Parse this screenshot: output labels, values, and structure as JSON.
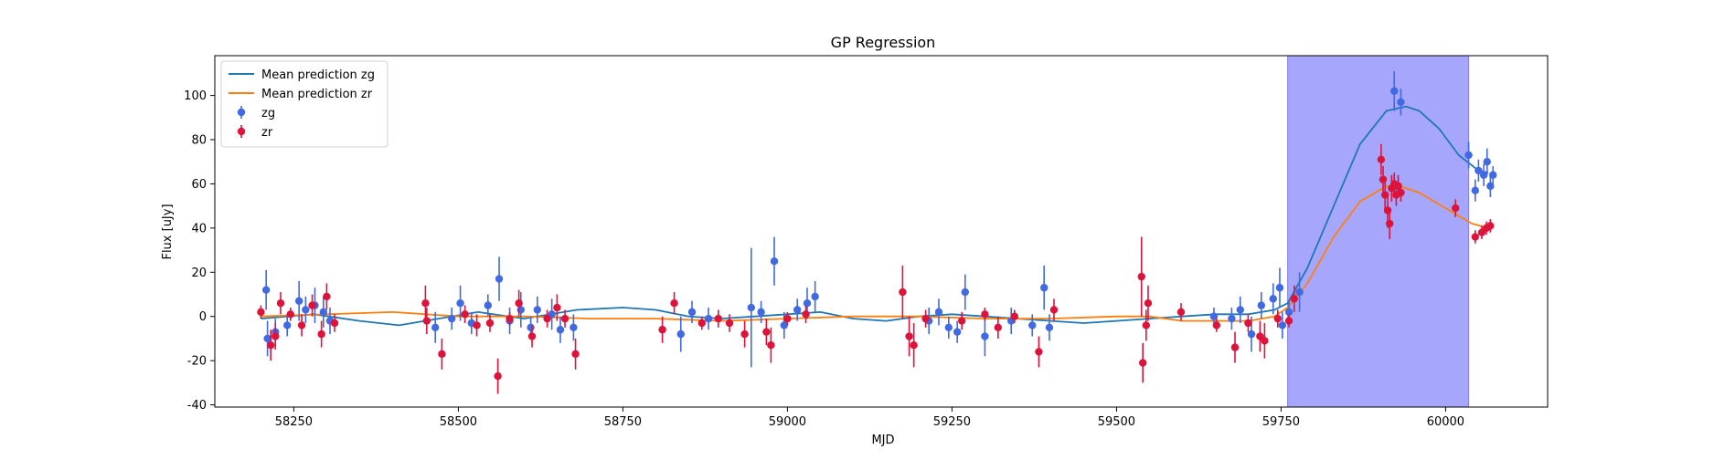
{
  "chart_data": {
    "type": "scatter",
    "title": "GP Regression",
    "xlabel": "MJD",
    "ylabel": "Flux [uJy]",
    "xlim": [
      58130,
      60155
    ],
    "ylim": [
      -41,
      118
    ],
    "xticks": [
      58250,
      58500,
      58750,
      59000,
      59250,
      59500,
      59750,
      60000
    ],
    "yticks": [
      -40,
      -20,
      0,
      20,
      40,
      60,
      80,
      100
    ],
    "shaded_region": {
      "x_start": 59760,
      "x_end": 60035,
      "color": "#a6a6fc"
    },
    "legend_position": "upper left",
    "legend": [
      {
        "label": "Mean prediction zg",
        "kind": "line",
        "color": "#1f77b4"
      },
      {
        "label": "Mean prediction zr",
        "kind": "line",
        "color": "#ff7f0e"
      },
      {
        "label": "zg",
        "kind": "errorbar",
        "color": "#4169e1"
      },
      {
        "label": "zr",
        "kind": "errorbar",
        "color": "#dc143c"
      }
    ],
    "series": [
      {
        "name": "Mean prediction zg",
        "type": "line",
        "color": "#1f77b4",
        "x": [
          58200,
          58280,
          58350,
          58410,
          58470,
          58530,
          58600,
          58680,
          58750,
          58800,
          58850,
          58900,
          58950,
          59000,
          59050,
          59100,
          59150,
          59200,
          59250,
          59300,
          59350,
          59400,
          59450,
          59500,
          59550,
          59600,
          59650,
          59700,
          59740,
          59760,
          59790,
          59830,
          59870,
          59910,
          59940,
          59960,
          59990,
          60020,
          60050,
          60065
        ],
        "y": [
          -1,
          1,
          -2,
          -4,
          -1,
          2,
          -1,
          3,
          4,
          3,
          0,
          -1,
          0,
          1,
          2,
          -1,
          -2,
          0,
          1,
          0,
          -1,
          -2,
          -3,
          -2,
          -1,
          0,
          1,
          1,
          3,
          6,
          22,
          50,
          78,
          93,
          95,
          93,
          85,
          73,
          66,
          65
        ]
      },
      {
        "name": "Mean prediction zr",
        "type": "line",
        "color": "#ff7f0e",
        "x": [
          58200,
          58300,
          58400,
          58500,
          58600,
          58700,
          58800,
          58900,
          59000,
          59100,
          59200,
          59300,
          59400,
          59500,
          59550,
          59600,
          59650,
          59700,
          59740,
          59760,
          59790,
          59830,
          59870,
          59910,
          59930,
          59960,
          60000,
          60040,
          60065
        ],
        "y": [
          0,
          1,
          2,
          0,
          0,
          -1,
          -1,
          -2,
          -1,
          0,
          0,
          -1,
          -1,
          0,
          0,
          -2,
          -2,
          -2,
          0,
          4,
          15,
          36,
          52,
          59,
          59,
          56,
          49,
          42,
          40
        ]
      },
      {
        "name": "zg",
        "type": "errorbar",
        "color": "#4169e1",
        "points": [
          [
            58208,
            12,
            9
          ],
          [
            58210,
            -10,
            8
          ],
          [
            58222,
            -7,
            6
          ],
          [
            58240,
            -4,
            5
          ],
          [
            58258,
            7,
            9
          ],
          [
            58268,
            3,
            6
          ],
          [
            58282,
            5,
            8
          ],
          [
            58295,
            2,
            7
          ],
          [
            58305,
            -2,
            6
          ],
          [
            58465,
            -5,
            7
          ],
          [
            58490,
            -1,
            5
          ],
          [
            58503,
            6,
            8
          ],
          [
            58520,
            -3,
            5
          ],
          [
            58545,
            5,
            5
          ],
          [
            58562,
            17,
            10
          ],
          [
            58578,
            -2,
            6
          ],
          [
            58595,
            3,
            8
          ],
          [
            58610,
            -5,
            5
          ],
          [
            58620,
            3,
            6
          ],
          [
            58642,
            1,
            7
          ],
          [
            58655,
            -6,
            6
          ],
          [
            58675,
            -5,
            6
          ],
          [
            58838,
            -8,
            8
          ],
          [
            58855,
            2,
            5
          ],
          [
            58880,
            -1,
            5
          ],
          [
            58945,
            4,
            27
          ],
          [
            58960,
            2,
            5
          ],
          [
            58980,
            25,
            11
          ],
          [
            58995,
            -4,
            6
          ],
          [
            59015,
            3,
            5
          ],
          [
            59030,
            6,
            7
          ],
          [
            59042,
            9,
            7
          ],
          [
            59215,
            -2,
            6
          ],
          [
            59230,
            2,
            6
          ],
          [
            59245,
            -5,
            5
          ],
          [
            59258,
            -7,
            5
          ],
          [
            59270,
            11,
            8
          ],
          [
            59300,
            -9,
            9
          ],
          [
            59340,
            -2,
            6
          ],
          [
            59372,
            -4,
            5
          ],
          [
            59390,
            13,
            10
          ],
          [
            59398,
            -5,
            6
          ],
          [
            59648,
            0,
            4
          ],
          [
            59675,
            -1,
            5
          ],
          [
            59688,
            3,
            6
          ],
          [
            59705,
            -8,
            8
          ],
          [
            59720,
            5,
            6
          ],
          [
            59738,
            8,
            7
          ],
          [
            59748,
            13,
            9
          ],
          [
            59752,
            -4,
            6
          ],
          [
            59762,
            2,
            5
          ],
          [
            59778,
            11,
            9
          ],
          [
            59922,
            102,
            9
          ],
          [
            59932,
            97,
            6
          ],
          [
            60035,
            73,
            6
          ],
          [
            60045,
            57,
            5
          ],
          [
            60050,
            66,
            5
          ],
          [
            60058,
            64,
            5
          ],
          [
            60063,
            70,
            6
          ],
          [
            60068,
            59,
            5
          ],
          [
            60072,
            64,
            4
          ]
        ]
      },
      {
        "name": "zr",
        "type": "errorbar",
        "color": "#dc143c",
        "points": [
          [
            58200,
            2,
            3
          ],
          [
            58215,
            -13,
            7
          ],
          [
            58222,
            -9,
            6
          ],
          [
            58230,
            6,
            5
          ],
          [
            58245,
            1,
            3
          ],
          [
            58262,
            -4,
            5
          ],
          [
            58278,
            5,
            5
          ],
          [
            58292,
            -8,
            6
          ],
          [
            58300,
            9,
            6
          ],
          [
            58312,
            -3,
            4
          ],
          [
            58450,
            6,
            8
          ],
          [
            58452,
            -2,
            6
          ],
          [
            58475,
            -17,
            7
          ],
          [
            58510,
            1,
            4
          ],
          [
            58528,
            -4,
            5
          ],
          [
            58548,
            -3,
            4
          ],
          [
            58560,
            -27,
            8
          ],
          [
            58578,
            -1,
            3
          ],
          [
            58592,
            6,
            6
          ],
          [
            58612,
            -9,
            5
          ],
          [
            58635,
            -1,
            4
          ],
          [
            58650,
            4,
            6
          ],
          [
            58662,
            -1,
            4
          ],
          [
            58678,
            -17,
            7
          ],
          [
            58810,
            -6,
            6
          ],
          [
            58828,
            6,
            5
          ],
          [
            58870,
            -3,
            3
          ],
          [
            58895,
            -1,
            4
          ],
          [
            58912,
            -3,
            4
          ],
          [
            58935,
            -8,
            6
          ],
          [
            58968,
            -7,
            6
          ],
          [
            58975,
            -13,
            8
          ],
          [
            59000,
            -1,
            3
          ],
          [
            59028,
            1,
            4
          ],
          [
            59175,
            11,
            12
          ],
          [
            59185,
            -9,
            9
          ],
          [
            59192,
            -13,
            10
          ],
          [
            59210,
            -1,
            4
          ],
          [
            59265,
            -2,
            4
          ],
          [
            59300,
            1,
            3
          ],
          [
            59320,
            -5,
            5
          ],
          [
            59345,
            0,
            3
          ],
          [
            59382,
            -16,
            7
          ],
          [
            59405,
            3,
            5
          ],
          [
            59538,
            18,
            18
          ],
          [
            59540,
            -21,
            9
          ],
          [
            59545,
            -4,
            7
          ],
          [
            59548,
            6,
            8
          ],
          [
            59598,
            2,
            4
          ],
          [
            59652,
            -4,
            3
          ],
          [
            59680,
            -14,
            7
          ],
          [
            59700,
            -3,
            4
          ],
          [
            59718,
            -9,
            7
          ],
          [
            59725,
            -11,
            8
          ],
          [
            59745,
            -1,
            4
          ],
          [
            59762,
            -2,
            3
          ],
          [
            59770,
            8,
            6
          ],
          [
            59902,
            71,
            7
          ],
          [
            59905,
            62,
            6
          ],
          [
            59908,
            55,
            8
          ],
          [
            59912,
            48,
            8
          ],
          [
            59915,
            42,
            7
          ],
          [
            59918,
            58,
            6
          ],
          [
            59922,
            60,
            5
          ],
          [
            59925,
            55,
            5
          ],
          [
            59928,
            59,
            5
          ],
          [
            59932,
            56,
            4
          ],
          [
            60015,
            49,
            4
          ],
          [
            60045,
            36,
            3
          ],
          [
            60055,
            38,
            3
          ],
          [
            60062,
            40,
            3
          ],
          [
            60068,
            41,
            3
          ]
        ]
      }
    ]
  }
}
